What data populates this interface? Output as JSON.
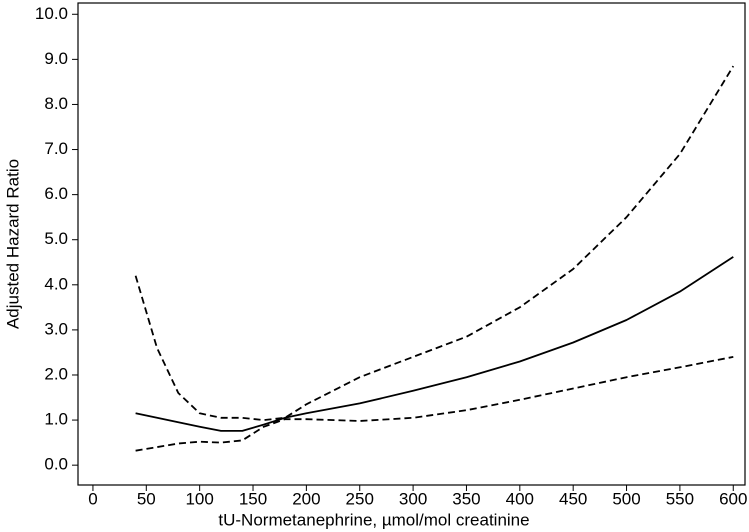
{
  "chart_data": {
    "type": "line",
    "xlabel": "tU-Normetanephrine, µmol/mol creatinine",
    "ylabel": "Adjusted Hazard Ratio",
    "x": [
      40,
      60,
      80,
      100,
      120,
      140,
      160,
      180,
      200,
      250,
      300,
      350,
      400,
      450,
      500,
      550,
      600
    ],
    "series": [
      {
        "color": "#000000",
        "dash": false,
        "values": [
          1.15,
          1.05,
          0.95,
          0.85,
          0.76,
          0.76,
          0.9,
          1.05,
          1.15,
          1.37,
          1.65,
          1.95,
          2.3,
          2.72,
          3.22,
          3.85,
          4.62
        ]
      },
      {
        "color": "#000000",
        "dash": true,
        "values": [
          4.2,
          2.6,
          1.6,
          1.15,
          1.05,
          1.05,
          1.0,
          1.05,
          1.35,
          1.95,
          2.4,
          2.85,
          3.5,
          4.35,
          5.5,
          6.9,
          8.85
        ]
      },
      {
        "color": "#000000",
        "dash": true,
        "values": [
          0.32,
          0.4,
          0.48,
          0.52,
          0.5,
          0.55,
          0.85,
          1.02,
          1.02,
          0.98,
          1.05,
          1.22,
          1.45,
          1.7,
          1.95,
          2.17,
          2.4
        ]
      }
    ],
    "xlim": [
      -14,
      611
    ],
    "xticks": [
      0,
      50,
      100,
      150,
      200,
      250,
      300,
      350,
      400,
      450,
      500,
      550,
      600
    ],
    "ylim": [
      -0.44,
      10.25
    ],
    "yticks": [
      {
        "value": 0,
        "label": "0.0"
      },
      {
        "value": 1,
        "label": "1.0"
      },
      {
        "value": 2,
        "label": "2.0"
      },
      {
        "value": 3,
        "label": "3.0"
      },
      {
        "value": 4,
        "label": "4.0"
      },
      {
        "value": 5,
        "label": "5.0"
      },
      {
        "value": 6,
        "label": "6.0"
      },
      {
        "value": 7,
        "label": "7.0"
      },
      {
        "value": 8,
        "label": "8.0"
      },
      {
        "value": 9,
        "label": "9.0"
      },
      {
        "value": 10,
        "label": "10.0"
      }
    ],
    "grid": false
  }
}
